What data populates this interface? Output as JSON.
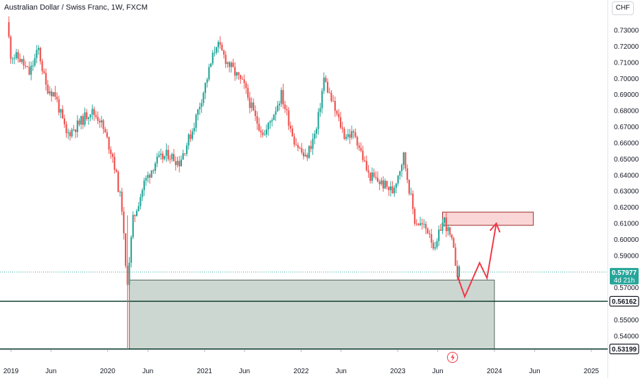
{
  "header": {
    "title": "Australian Dollar / Swiss Franc, 1W, FXCM",
    "currency": "CHF"
  },
  "price_tags": {
    "last_price": "0.57977",
    "countdown": "4d 21h",
    "level_upper": "0.56162",
    "level_lower": "0.53199"
  },
  "colors": {
    "up": "#26a69a",
    "down": "#ef5350",
    "zone_green": "#b2c2b9",
    "zone_red": "#f8c8c8",
    "arrow": "#f23645",
    "level_line": "#0b3d2c"
  },
  "chart_data": {
    "type": "candlestick",
    "title": "Australian Dollar / Swiss Franc, 1W, FXCM",
    "xlabel": "",
    "ylabel": "",
    "y_range": [
      0.5295,
      0.74
    ],
    "y_ticks": [
      "0.73000",
      "0.72000",
      "0.71000",
      "0.70000",
      "0.69000",
      "0.68000",
      "0.67000",
      "0.66000",
      "0.65000",
      "0.64000",
      "0.63000",
      "0.62000",
      "0.61000",
      "0.60000",
      "0.59000",
      "0.57000",
      "0.55000",
      "0.54000"
    ],
    "y_tick_values": [
      0.73,
      0.72,
      0.71,
      0.7,
      0.69,
      0.68,
      0.67,
      0.66,
      0.65,
      0.64,
      0.63,
      0.62,
      0.61,
      0.6,
      0.59,
      0.57,
      0.55,
      0.54
    ],
    "x_range": [
      "2018-12-24",
      "2025-03-10"
    ],
    "x_ticks": [
      {
        "label": "2019",
        "date": "2019-01-01"
      },
      {
        "label": "Jun",
        "date": "2019-06-01"
      },
      {
        "label": "2020",
        "date": "2020-01-01"
      },
      {
        "label": "Jun",
        "date": "2020-06-01"
      },
      {
        "label": "2021",
        "date": "2021-01-01"
      },
      {
        "label": "Jun",
        "date": "2021-06-01"
      },
      {
        "label": "2022",
        "date": "2022-01-01"
      },
      {
        "label": "Jun",
        "date": "2022-06-01"
      },
      {
        "label": "2023",
        "date": "2023-01-01"
      },
      {
        "label": "Jun",
        "date": "2023-06-01"
      },
      {
        "label": "2024",
        "date": "2024-01-01"
      },
      {
        "label": "Jun",
        "date": "2024-06-01"
      },
      {
        "label": "2025",
        "date": "2025-01-01"
      }
    ],
    "price_path": [
      [
        "2018-12-24",
        0.735
      ],
      [
        "2019-01-07",
        0.715
      ],
      [
        "2019-02-11",
        0.712
      ],
      [
        "2019-03-18",
        0.703
      ],
      [
        "2019-04-22",
        0.718
      ],
      [
        "2019-05-20",
        0.695
      ],
      [
        "2019-06-24",
        0.69
      ],
      [
        "2019-08-05",
        0.665
      ],
      [
        "2019-09-23",
        0.672
      ],
      [
        "2019-11-04",
        0.68
      ],
      [
        "2019-12-09",
        0.675
      ],
      [
        "2020-01-27",
        0.652
      ],
      [
        "2020-03-02",
        0.62
      ],
      [
        "2020-03-16",
        0.582
      ],
      [
        "2020-03-23",
        0.575
      ],
      [
        "2020-04-13",
        0.612
      ],
      [
        "2020-05-25",
        0.635
      ],
      [
        "2020-07-06",
        0.648
      ],
      [
        "2020-08-24",
        0.653
      ],
      [
        "2020-10-05",
        0.648
      ],
      [
        "2020-11-23",
        0.668
      ],
      [
        "2021-01-04",
        0.692
      ],
      [
        "2021-02-22",
        0.722
      ],
      [
        "2021-04-05",
        0.71
      ],
      [
        "2021-06-07",
        0.695
      ],
      [
        "2021-07-19",
        0.675
      ],
      [
        "2021-08-23",
        0.665
      ],
      [
        "2021-10-25",
        0.69
      ],
      [
        "2021-12-13",
        0.662
      ],
      [
        "2022-01-24",
        0.65
      ],
      [
        "2022-03-07",
        0.668
      ],
      [
        "2022-04-04",
        0.7
      ],
      [
        "2022-05-16",
        0.68
      ],
      [
        "2022-06-20",
        0.665
      ],
      [
        "2022-08-01",
        0.665
      ],
      [
        "2022-09-19",
        0.64
      ],
      [
        "2022-11-07",
        0.635
      ],
      [
        "2022-12-19",
        0.63
      ],
      [
        "2023-01-30",
        0.652
      ],
      [
        "2023-03-13",
        0.612
      ],
      [
        "2023-05-08",
        0.605
      ],
      [
        "2023-05-29",
        0.592
      ],
      [
        "2023-06-19",
        0.608
      ],
      [
        "2023-07-03",
        0.612
      ],
      [
        "2023-07-31",
        0.598
      ],
      [
        "2023-08-21",
        0.58
      ]
    ],
    "last_price": 0.57977,
    "horizontal_levels": [
      0.56162,
      0.53199
    ],
    "zones": [
      {
        "color": "green",
        "x": [
          "2020-03-23",
          "2024-01-01"
        ],
        "y": [
          0.53199,
          0.5748
        ]
      },
      {
        "color": "red",
        "x": [
          "2023-06-19",
          "2024-05-27"
        ],
        "y": [
          0.6088,
          0.617
        ]
      }
    ],
    "projection_arrow": [
      [
        "2023-08-14",
        0.5775
      ],
      [
        "2023-09-11",
        0.5645
      ],
      [
        "2023-11-06",
        0.5855
      ],
      [
        "2023-12-04",
        0.576
      ],
      [
        "2024-01-08",
        0.61
      ]
    ]
  }
}
